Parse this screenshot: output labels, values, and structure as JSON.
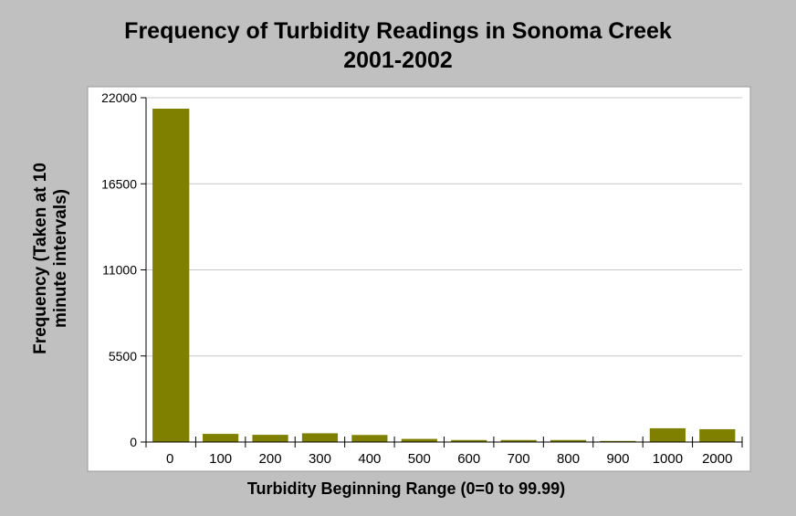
{
  "chart_data": {
    "type": "bar",
    "title_line1": "Frequency of Turbidity Readings in Sonoma Creek",
    "title_line2": "2001-2002",
    "ylabel_line1": "Frequency (Taken at 10",
    "ylabel_line2": "minute intervals)",
    "xlabel": "Turbidity Beginning Range (0=0 to 99.99)",
    "categories": [
      "0",
      "100",
      "200",
      "300",
      "400",
      "500",
      "600",
      "700",
      "800",
      "900",
      "1000",
      "2000"
    ],
    "values": [
      21300,
      520,
      460,
      560,
      450,
      200,
      130,
      130,
      130,
      70,
      880,
      820
    ],
    "ylim": [
      0,
      22000
    ],
    "yticks": [
      0,
      5500,
      11000,
      16500,
      22000
    ],
    "grid": true,
    "colors": {
      "bar": "#808000",
      "plot_bg": "#ffffff",
      "gridline": "#c8c8c8"
    }
  }
}
